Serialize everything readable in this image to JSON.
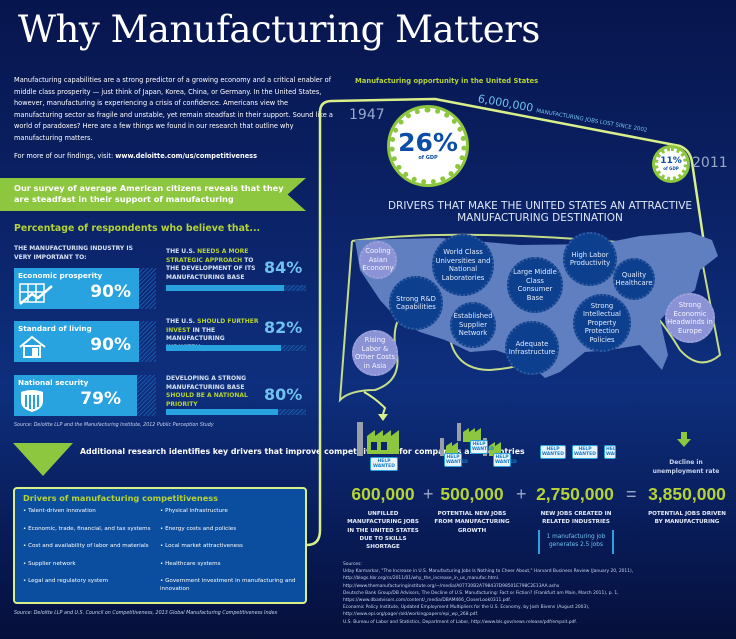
{
  "title": "Why Manufacturing Matters",
  "intro": "Manufacturing capabilities are a strong predictor of a growing economy and a critical enabler of middle class prosperity — just think of Japan, Korea, China, or Germany. In the United States, however, manufacturing is experiencing a crisis of confidence. Americans view the manufacturing sector as fragile and unstable, yet remain steadfast in their support. Sound like a world of paradoxes? Here are a few things we found in our research that outline why manufacturing matters.",
  "more_prefix": "For more of our findings, visit: ",
  "more_link": "www.deloitte.com/us/competitiveness",
  "banner": "Our survey of average American citizens reveals that they are steadfast in their support of manufacturing",
  "survey": {
    "title": "Percentage of respondents who believe that...",
    "left_heading": "THE MANUFACTURING INDUSTRY IS VERY IMPORTANT TO:",
    "left": [
      {
        "label": "Economic prosperity",
        "value": "90%",
        "icon": "chart-growth-icon"
      },
      {
        "label": "Standard of living",
        "value": "90%",
        "icon": "house-icon"
      },
      {
        "label": "National security",
        "value": "79%",
        "icon": "shield-icon"
      }
    ],
    "right": [
      {
        "pre": "THE U.S. ",
        "em": "NEEDS A MORE STRATEGIC APPROACH",
        "post": " TO THE DEVELOPMENT OF ITS MANUFACTURING BASE",
        "value": "84%",
        "fill": 84
      },
      {
        "pre": "THE U.S. ",
        "em": "SHOULD FURTHER INVEST",
        "post": " IN THE MANUFACTURING INDUSTRY",
        "value": "82%",
        "fill": 82
      },
      {
        "pre": "DEVELOPING A STRONG MANUFACTURING BASE ",
        "em": "SHOULD BE A NATIONAL PRIORITY",
        "post": "",
        "value": "80%",
        "fill": 80
      }
    ],
    "source": "Source: Deloitte LLP and the Manufacturing Institute, 2012 Public Perception Study"
  },
  "additional": "Additional research identifies key drivers that improve competitiveness for companies and countries",
  "drivers_box": {
    "title": "Drivers of manufacturing competitiveness",
    "col1": [
      "• Talent-driven innovation",
      "• Economic, trade, financial, and tax systems",
      "• Cost and availability of labor and materials",
      "• Supplier network",
      "• Legal and regulatory system"
    ],
    "col2": [
      "• Physical infrastructure",
      "• Energy costs and policies",
      "• Local market attractiveness",
      "• Healthcare systems",
      "• Government investment in manufacturing and innovation"
    ],
    "source": "Source: Deloitte LLP and U.S. Council on Competitiveness, 2013 Global Manufacturing Competitiveness Index"
  },
  "opportunity": {
    "title": "Manufacturing opportunity in the United States",
    "year_start": "1947",
    "pct_start": "26%",
    "gdp_label": "of GDP",
    "year_end": "2011",
    "pct_end": "11%",
    "jobs_lost_num": "6,000,000",
    "jobs_lost_text": "MANUFACTURING JOBS LOST SINCE 2002",
    "drivers_title": "DRIVERS THAT MAKE THE UNITED STATES AN ATTRACTIVE MANUFACTURING DESTINATION",
    "bubbles": [
      "Cooling Asian Economy",
      "World Class Universities and National Laboratories",
      "Large Middle Class Consumer Base",
      "High Labor Productivity",
      "Quality Healthcare",
      "Strong R&D Capabilities",
      "Established Supplier Network",
      "Adequate Infrastructure",
      "Strong Intellectual Property Protection Policies",
      "Strong Economic Headwinds in Europe",
      "Rising Labor & Other Costs in Asia"
    ]
  },
  "jobs": {
    "help_wanted": "HELP WANTED",
    "items": [
      {
        "num": "600,000",
        "label": "UNFILLED MANUFACTURING JOBS IN THE UNITED STATES DUE TO SKILLS SHORTAGE"
      },
      {
        "num": "500,000",
        "label": "POTENTIAL NEW JOBS FROM MANUFACTURING GROWTH"
      },
      {
        "num": "2,750,000",
        "label": "NEW JOBS CREATED IN RELATED INDUSTRIES"
      },
      {
        "num": "3,850,000",
        "label": "POTENTIAL JOBS DRIVEN BY MANUFACTURING"
      }
    ],
    "plus": "+",
    "equals": "=",
    "multiplier": "1 manufacturing job generates 2.5 jobs",
    "decline": "Decline in unemployment rate"
  },
  "sources": {
    "title": "Sources:",
    "lines": [
      "Uday Karmarkar, \"The Increase in U.S. Manufacturing Jobs Is Nothing to Cheer About,\" Harvard Business Review (January 20, 2011),",
      "http://blogs.hbr.org/cs/2011/01/why_the_increase_in_us_manufac.html.",
      "http://www.themanufacturinginstitute.org/~/media/A07730B2A798437D98501E798C2E13AA.ashx",
      "Deutsche Bank Group/DB Advisors, The Decline of U.S. Manufacturing: Fact or Fiction? (Frankfurt am Main, March 2011), p. 1,",
      "https://www.dbadvisors.com/content/_media/DBAM466_CloserLook0311.pdf.",
      "Economic Policy Institute, Updated Employment Multipliers for the U.S. Economy, by Josh Bivens (August 2003),",
      "http://www.epi.org/page/-/old/workingpapers/epi_wp_268.pdf.",
      "U.S. Bureau of Labor and Statistics, Department of Labor, http://www.bls.gov/news.release/pdf/empsit.pdf."
    ]
  },
  "colors": {
    "green": "#8dc63f",
    "lime": "#b5d334",
    "blue": "#29a3e0",
    "navy": "#0b2368"
  }
}
